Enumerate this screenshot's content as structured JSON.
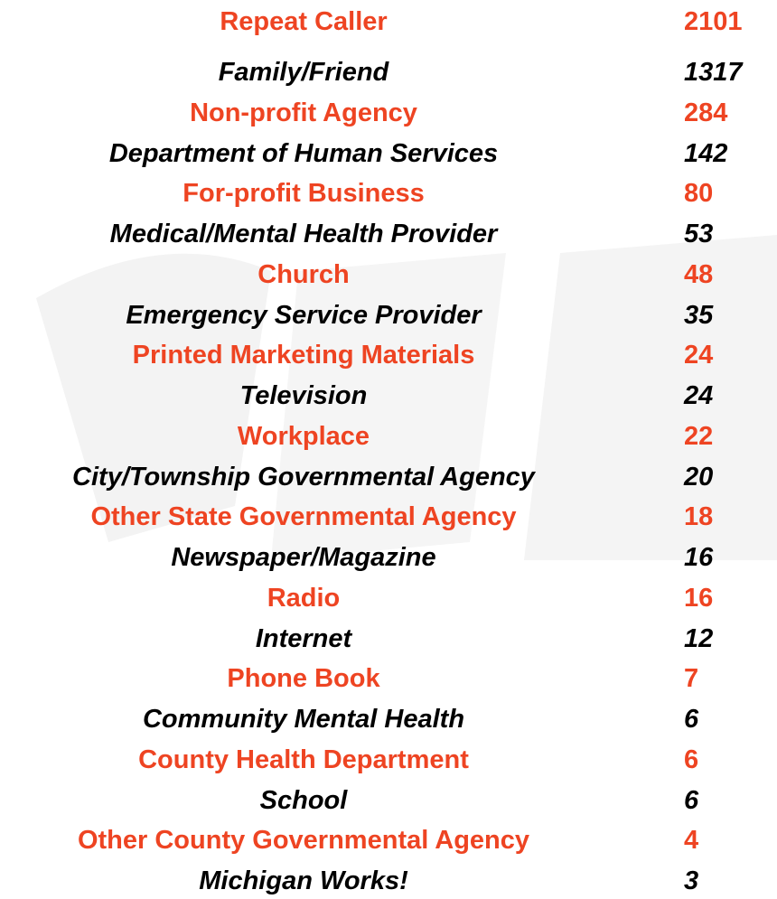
{
  "table": {
    "rows": [
      {
        "label": "Repeat Caller",
        "count": 2101
      },
      {
        "label": "Family/Friend",
        "count": 1317
      },
      {
        "label": "Non-profit Agency",
        "count": 284
      },
      {
        "label": "Department of Human Services",
        "count": 142
      },
      {
        "label": "For-profit Business",
        "count": 80
      },
      {
        "label": "Medical/Mental Health Provider",
        "count": 53
      },
      {
        "label": "Church",
        "count": 48
      },
      {
        "label": "Emergency Service Provider",
        "count": 35
      },
      {
        "label": "Printed Marketing Materials",
        "count": 24
      },
      {
        "label": "Television",
        "count": 24
      },
      {
        "label": "Workplace",
        "count": 22
      },
      {
        "label": "City/Township Governmental Agency",
        "count": 20
      },
      {
        "label": "Other State Governmental Agency",
        "count": 18
      },
      {
        "label": "Newspaper/Magazine",
        "count": 16
      },
      {
        "label": "Radio",
        "count": 16
      },
      {
        "label": "Internet",
        "count": 12
      },
      {
        "label": "Phone Book",
        "count": 7
      },
      {
        "label": "Community Mental Health",
        "count": 6
      },
      {
        "label": "County Health Department",
        "count": 6
      },
      {
        "label": "School",
        "count": 6
      },
      {
        "label": "Other County Governmental Agency",
        "count": 4
      },
      {
        "label": "Michigan Works!",
        "count": 3
      }
    ]
  }
}
